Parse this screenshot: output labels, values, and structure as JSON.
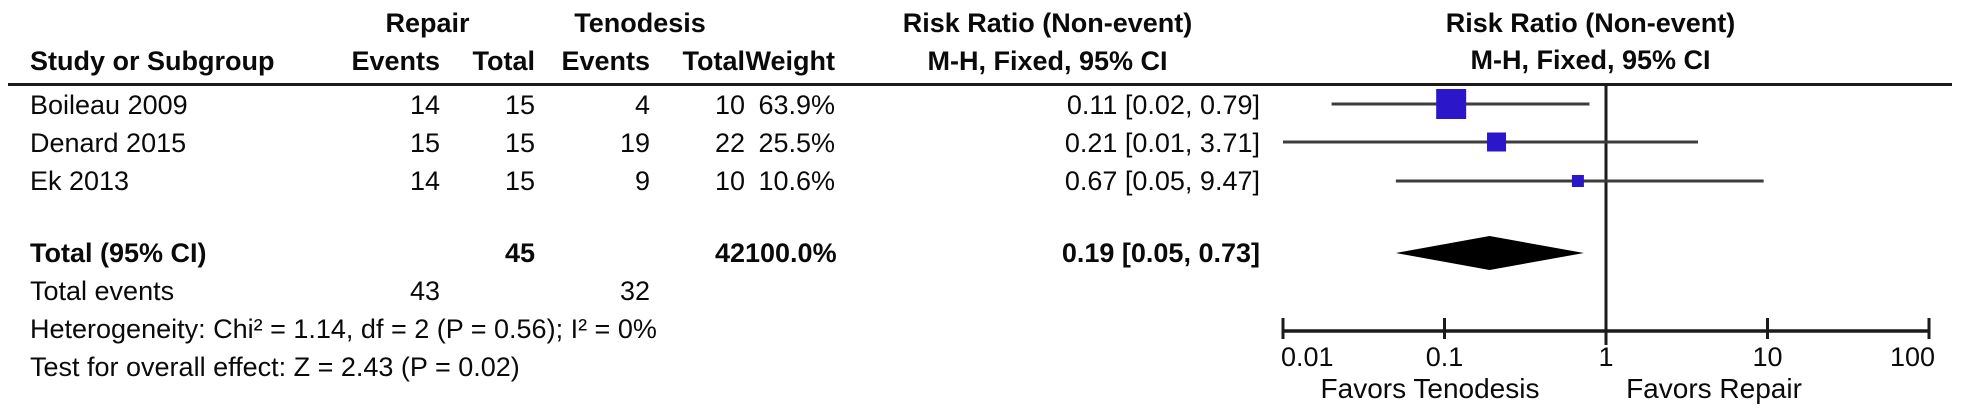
{
  "table": {
    "group_headers": {
      "repair": "Repair",
      "tenodesis": "Tenodesis",
      "risk_ratio": "Risk Ratio (Non-event)"
    },
    "col_headers": {
      "study": "Study or Subgroup",
      "repair_events": "Events",
      "repair_total": "Total",
      "tenodesis_events": "Events",
      "tenodesis_total": "Total",
      "weight": "Weight",
      "ci": "M-H, Fixed, 95% CI"
    },
    "rows": [
      {
        "study": "Boileau 2009",
        "repair_events": "14",
        "repair_total": "15",
        "tenodesis_events": "4",
        "tenodesis_total": "10",
        "weight": "63.9%",
        "rr_ci": "0.11 [0.02, 0.79]"
      },
      {
        "study": "Denard 2015",
        "repair_events": "15",
        "repair_total": "15",
        "tenodesis_events": "19",
        "tenodesis_total": "22",
        "weight": "25.5%",
        "rr_ci": "0.21 [0.01, 3.71]"
      },
      {
        "study": "Ek 2013",
        "repair_events": "14",
        "repair_total": "15",
        "tenodesis_events": "9",
        "tenodesis_total": "10",
        "weight": "10.6%",
        "rr_ci": "0.67 [0.05, 9.47]"
      }
    ],
    "total_row": {
      "label": "Total (95% CI)",
      "repair_total": "45",
      "tenodesis_total": "42",
      "weight": "100.0%",
      "rr_ci": "0.19 [0.05, 0.73]"
    },
    "total_events": {
      "label": "Total events",
      "repair": "43",
      "tenodesis": "32"
    },
    "heterogeneity": "Heterogeneity: Chi² = 1.14, df = 2 (P = 0.56); I² = 0%",
    "overall_effect": "Test for overall effect: Z = 2.43 (P = 0.02)"
  },
  "plot": {
    "header_line1": "Risk Ratio (Non-event)",
    "header_line2": "M-H, Fixed, 95% CI",
    "favors_left": "Favors Tenodesis",
    "favors_right": "Favors Repair",
    "tick_labels": [
      "0.01",
      "0.1",
      "1",
      "10",
      "100"
    ],
    "colors": {
      "square": "#2b16c9",
      "diamond": "#000000",
      "ci_line": "#3d3d3d",
      "axis": "#1b1b1b",
      "text": "#0a0a0a"
    }
  },
  "chart_data": {
    "type": "forest",
    "title": "Risk Ratio (Non-event)",
    "effect_measure": "M-H, Fixed, 95% CI",
    "x_scale": "log",
    "xlim": [
      0.01,
      100
    ],
    "tick_values": [
      0.01,
      0.1,
      1,
      10,
      100
    ],
    "null_line": 1,
    "studies": [
      {
        "name": "Boileau 2009",
        "rr": 0.11,
        "ci_low": 0.02,
        "ci_high": 0.79,
        "weight_pct": 63.9
      },
      {
        "name": "Denard 2015",
        "rr": 0.21,
        "ci_low": 0.01,
        "ci_high": 3.71,
        "weight_pct": 25.5
      },
      {
        "name": "Ek 2013",
        "rr": 0.67,
        "ci_low": 0.05,
        "ci_high": 9.47,
        "weight_pct": 10.6
      }
    ],
    "total": {
      "rr": 0.19,
      "ci_low": 0.05,
      "ci_high": 0.73
    },
    "footer_left_label": "Favors Tenodesis",
    "footer_right_label": "Favors Repair"
  }
}
